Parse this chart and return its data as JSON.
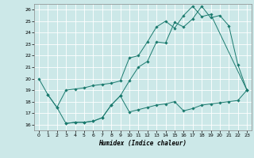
{
  "title": "",
  "xlabel": "Humidex (Indice chaleur)",
  "bg_color": "#cce8e8",
  "grid_color": "#ffffff",
  "line_color": "#1a7a6e",
  "xlim": [
    -0.5,
    23.5
  ],
  "ylim": [
    15.5,
    26.5
  ],
  "xticks": [
    0,
    1,
    2,
    3,
    4,
    5,
    6,
    7,
    8,
    9,
    10,
    11,
    12,
    13,
    14,
    15,
    16,
    17,
    18,
    19,
    20,
    21,
    22,
    23
  ],
  "yticks": [
    16,
    17,
    18,
    19,
    20,
    21,
    22,
    23,
    24,
    25,
    26
  ],
  "line1_x": [
    0,
    1,
    2,
    3,
    4,
    5,
    6,
    7,
    8,
    9,
    10,
    11,
    12,
    13,
    14,
    15,
    16,
    17,
    18,
    19,
    20,
    21,
    22,
    23
  ],
  "line1_y": [
    20.0,
    18.6,
    17.5,
    16.1,
    16.2,
    16.2,
    16.3,
    16.6,
    17.7,
    18.5,
    19.8,
    21.0,
    21.5,
    23.2,
    23.1,
    24.9,
    24.5,
    25.2,
    26.3,
    25.3,
    25.5,
    24.6,
    21.2,
    19.0
  ],
  "line2_x": [
    1,
    2,
    3,
    4,
    5,
    6,
    7,
    8,
    9,
    10,
    11,
    12,
    13,
    14,
    15,
    16,
    17,
    18,
    19,
    23
  ],
  "line2_y": [
    18.6,
    17.5,
    19.0,
    19.1,
    19.2,
    19.4,
    19.5,
    19.6,
    19.8,
    21.8,
    22.0,
    23.2,
    24.5,
    25.0,
    24.4,
    25.5,
    26.3,
    25.4,
    25.6,
    19.0
  ],
  "line3_x": [
    3,
    4,
    5,
    6,
    7,
    8,
    9,
    10,
    11,
    12,
    13,
    14,
    15,
    16,
    17,
    18,
    19,
    20,
    21,
    22,
    23
  ],
  "line3_y": [
    16.1,
    16.2,
    16.2,
    16.3,
    16.6,
    17.7,
    18.5,
    17.1,
    17.3,
    17.5,
    17.7,
    17.8,
    18.0,
    17.2,
    17.4,
    17.7,
    17.8,
    17.9,
    18.0,
    18.1,
    19.0
  ]
}
